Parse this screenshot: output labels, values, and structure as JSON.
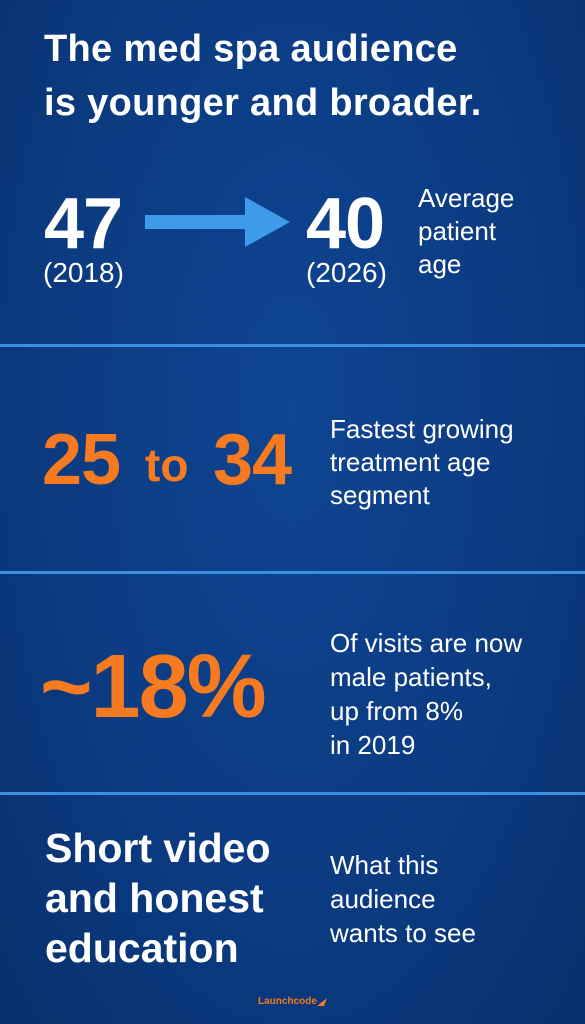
{
  "title": [
    "The med spa audience",
    "is younger and broader."
  ],
  "age_change": {
    "from": {
      "value": "47",
      "year": "(2018)"
    },
    "to": {
      "value": "40",
      "year": "(2026)"
    },
    "label": [
      "Average",
      "patient",
      "age"
    ]
  },
  "age_segment": {
    "start": "25",
    "joiner": "to",
    "end": "34",
    "label": [
      "Fastest growing",
      "treatment age",
      "segment"
    ]
  },
  "male_share": {
    "value": "~18%",
    "label": [
      "Of visits are now",
      "male patients,",
      "up from 8%",
      "in 2019"
    ]
  },
  "content": {
    "headline": [
      "Short video",
      "and honest",
      "education"
    ],
    "label": [
      "What this",
      "audience",
      "wants to see"
    ]
  },
  "footer": {
    "brand": "Launchcode"
  }
}
